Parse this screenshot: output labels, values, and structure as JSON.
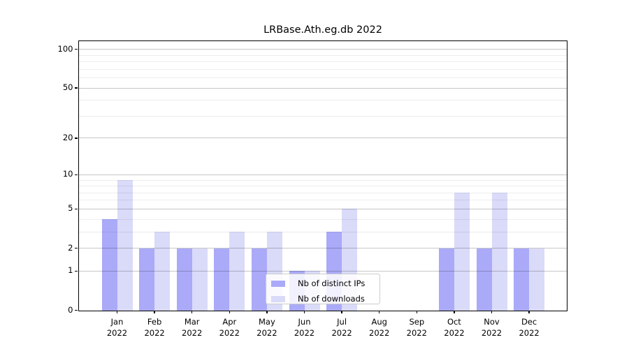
{
  "title": "LRBase.Ath.eg.db 2022",
  "chart_data": {
    "type": "bar",
    "title": "LRBase.Ath.eg.db 2022",
    "categories": [
      "Jan",
      "Feb",
      "Mar",
      "Apr",
      "May",
      "Jun",
      "Jul",
      "Aug",
      "Sep",
      "Oct",
      "Nov",
      "Dec"
    ],
    "x_year": "2022",
    "series": [
      {
        "name": "Nb of distinct IPs",
        "color": "#aaaaf8",
        "values": [
          4,
          2,
          2,
          2,
          2,
          1,
          3,
          0,
          0,
          2,
          2,
          2
        ]
      },
      {
        "name": "Nb of downloads",
        "color": "#dadaf9",
        "values": [
          9,
          3,
          2,
          3,
          3,
          1,
          5,
          0,
          0,
          7,
          7,
          2
        ]
      }
    ],
    "yscale": "log1p",
    "ylim": [
      0,
      116
    ],
    "y_major_ticks": [
      0,
      1,
      2,
      5,
      10,
      20,
      50,
      100
    ],
    "y_major_gridlines": [
      1,
      2,
      5,
      10,
      20,
      50,
      100
    ],
    "y_minor_gridlines": [
      3,
      4,
      6,
      7,
      8,
      9,
      30,
      40,
      60,
      70,
      80,
      90
    ],
    "xlabel": "",
    "ylabel": "",
    "grid": true,
    "legend_position": "lower center",
    "colors": {
      "axis": "#000000",
      "major_grid": "#c6c6c6",
      "minor_grid": "#ebebeb",
      "background": "#ffffff"
    }
  }
}
